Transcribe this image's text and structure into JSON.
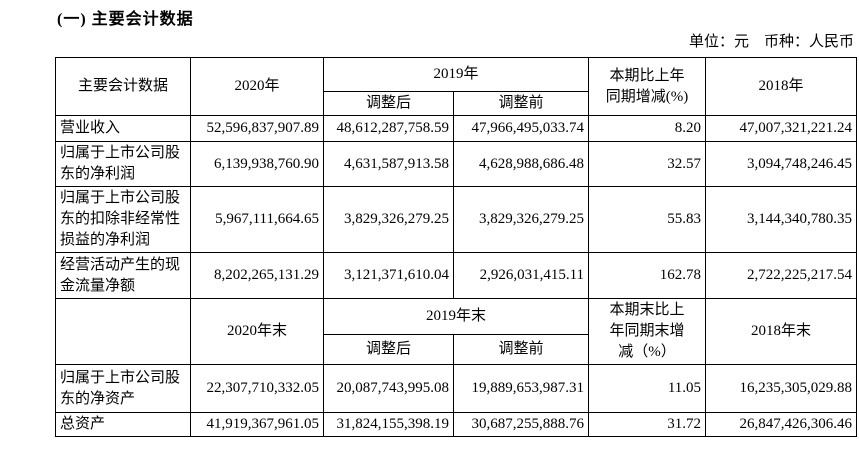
{
  "page": {
    "title": "(一) 主要会计数据",
    "unit_note": "单位：元　币种：人民币"
  },
  "table": {
    "header1": {
      "label": "主要会计数据",
      "y2020": "2020年",
      "y2019": "2019年",
      "adjusted": "调整后",
      "pre_adjust": "调整前",
      "change": "本期比上年\n同期增减(%)",
      "y2018": "2018年"
    },
    "rows1": [
      {
        "label": "营业收入",
        "y2020": "52,596,837,907.89",
        "adjusted": "48,612,287,758.59",
        "pre_adjust": "47,966,495,033.74",
        "change": "8.20",
        "y2018": "47,007,321,221.24"
      },
      {
        "label": "归属于上市公司股东的净利润",
        "y2020": "6,139,938,760.90",
        "adjusted": "4,631,587,913.58",
        "pre_adjust": "4,628,988,686.48",
        "change": "32.57",
        "y2018": "3,094,748,246.45"
      },
      {
        "label": "归属于上市公司股东的扣除非经常性损益的净利润",
        "y2020": "5,967,111,664.65",
        "adjusted": "3,829,326,279.25",
        "pre_adjust": "3,829,326,279.25",
        "change": "55.83",
        "y2018": "3,144,340,780.35"
      },
      {
        "label": "经营活动产生的现金流量净额",
        "y2020": "8,202,265,131.29",
        "adjusted": "3,121,371,610.04",
        "pre_adjust": "2,926,031,415.11",
        "change": "162.78",
        "y2018": "2,722,225,217.54"
      }
    ],
    "header2": {
      "label": "",
      "y2020": "2020年末",
      "y2019": "2019年末",
      "adjusted": "调整后",
      "pre_adjust": "调整前",
      "change": "本期末比上\n年同期末增\n减（%）",
      "y2018": "2018年末"
    },
    "rows2": [
      {
        "label": "归属于上市公司股东的净资产",
        "y2020": "22,307,710,332.05",
        "adjusted": "20,087,743,995.08",
        "pre_adjust": "19,889,653,987.31",
        "change": "11.05",
        "y2018": "16,235,305,029.88"
      },
      {
        "label": "总资产",
        "y2020": "41,919,367,961.05",
        "adjusted": "31,824,155,398.19",
        "pre_adjust": "30,687,255,888.76",
        "change": "31.72",
        "y2018": "26,847,426,306.46"
      }
    ]
  }
}
